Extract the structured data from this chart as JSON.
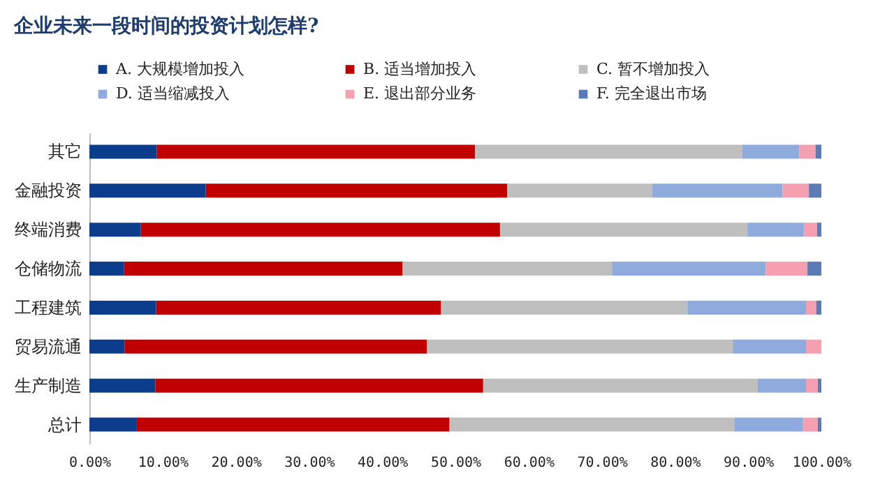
{
  "chart_data": {
    "type": "bar",
    "orientation": "horizontal",
    "stacked": true,
    "title": "企业未来一段时间的投资计划怎样?",
    "categories": [
      "其它",
      "金融投资",
      "终端消费",
      "仓储物流",
      "工程建筑",
      "贸易流通",
      "生产制造",
      "总计"
    ],
    "series": [
      {
        "name": "A. 大规模增加投入",
        "color": "#0b3d8c",
        "values": [
          9.2,
          15.9,
          7.0,
          4.7,
          9.1,
          4.8,
          9.0,
          6.4
        ]
      },
      {
        "name": "B. 适当增加投入",
        "color": "#c00000",
        "values": [
          43.5,
          41.2,
          49.1,
          38.1,
          38.9,
          41.3,
          44.8,
          42.8
        ]
      },
      {
        "name": "C. 暂不增加投入",
        "color": "#bfbfbf",
        "values": [
          36.5,
          19.8,
          33.8,
          28.6,
          33.7,
          41.8,
          37.5,
          38.9
        ]
      },
      {
        "name": "D. 适当缩减投入",
        "color": "#8faadc",
        "values": [
          7.8,
          17.8,
          7.7,
          21.0,
          16.2,
          10.0,
          6.6,
          9.4
        ]
      },
      {
        "name": "E. 退出部分业务",
        "color": "#f4a0b0",
        "values": [
          2.2,
          3.6,
          1.8,
          5.7,
          1.4,
          2.1,
          1.6,
          2.0
        ]
      },
      {
        "name": "F. 完全退出市场",
        "color": "#5a7bb5",
        "values": [
          0.8,
          1.7,
          0.6,
          1.9,
          0.7,
          0.0,
          0.5,
          0.5
        ]
      }
    ],
    "xlim": [
      0,
      100
    ],
    "xticks": [
      {
        "value": 0,
        "label": "0.00%"
      },
      {
        "value": 10,
        "label": "10.00%"
      },
      {
        "value": 20,
        "label": "20.00%"
      },
      {
        "value": 30,
        "label": "30.00%"
      },
      {
        "value": 40,
        "label": "40.00%"
      },
      {
        "value": 50,
        "label": "50.00%"
      },
      {
        "value": 60,
        "label": "60.00%"
      },
      {
        "value": 70,
        "label": "70.00%"
      },
      {
        "value": 80,
        "label": "80.00%"
      },
      {
        "value": 90,
        "label": "90.00%"
      },
      {
        "value": 100,
        "label": "100.00%"
      }
    ],
    "legend": "top",
    "grid": false
  }
}
